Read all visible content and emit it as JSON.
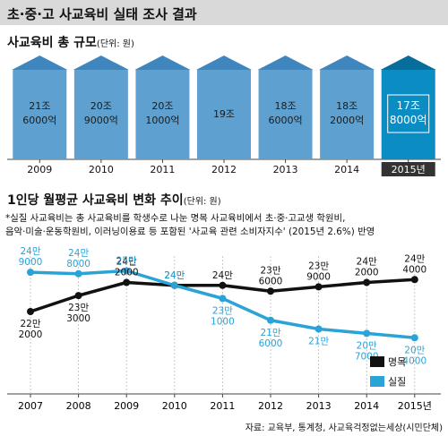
{
  "title": "초·중·고 사교육비 실태 조사 결과",
  "source": "자료: 교육부, 통계청, 사교육걱정없는세상(시민단체)",
  "chart_data": [
    {
      "type": "bar",
      "title": "사교육비 총 규모",
      "unit": "(단위: 원)",
      "categories": [
        "2009",
        "2010",
        "2011",
        "2012",
        "2013",
        "2014",
        "2015년"
      ],
      "values": [
        216000,
        209000,
        201000,
        190000,
        186000,
        182000,
        178000
      ],
      "value_unit": "억 원",
      "value_labels": [
        [
          "21조",
          "6000억"
        ],
        [
          "20조",
          "9000억"
        ],
        [
          "20조",
          "1000억"
        ],
        [
          "19조"
        ],
        [
          "18조",
          "6000억"
        ],
        [
          "18조",
          "2000억"
        ],
        [
          "17조",
          "8000억"
        ]
      ],
      "highlight_index": 6,
      "colors": {
        "bar": "#5ea1d1",
        "highlight": "#0b8dc4",
        "roof": "#3f86bf",
        "highlight_roof": "#076e9c"
      }
    },
    {
      "type": "line",
      "title": "1인당 월평균 사교육비 변화 추이",
      "unit": "(단위: 원)",
      "note": [
        "*실질 사교육비는 총 사교육비를 학생수로 나눈 명목 사교육비에서 초·중·고교생 학원비,",
        "음악·미술·운동학원비, 이러닝이용료 등 포함된 '사교육 관련 소비자지수' (2015년 2.6%) 반영"
      ],
      "x": [
        "2007",
        "2008",
        "2009",
        "2010",
        "2011",
        "2012",
        "2013",
        "2014",
        "2015년"
      ],
      "ylim": [
        190000,
        270000
      ],
      "legend_position": "bottom-right",
      "series": [
        {
          "name": "명목",
          "color": "#111111",
          "values": [
            222000,
            233000,
            242000,
            240000,
            240000,
            236000,
            239000,
            242000,
            244000
          ],
          "labels": [
            [
              "22만",
              "2000"
            ],
            [
              "23만",
              "3000"
            ],
            [
              "24만",
              "2000"
            ],
            [
              "24만"
            ],
            [
              "24만"
            ],
            [
              "23만",
              "6000"
            ],
            [
              "23만",
              "9000"
            ],
            [
              "24만",
              "2000"
            ],
            [
              "24만",
              "4000"
            ]
          ]
        },
        {
          "name": "실질",
          "color": "#2aa3d6",
          "values": [
            249000,
            248000,
            250000,
            240000,
            231000,
            216000,
            210000,
            207000,
            204000
          ],
          "labels": [
            [
              "24만",
              "9000"
            ],
            [
              "24만",
              "8000"
            ],
            [
              "25만"
            ],
            [
              "24만"
            ],
            [
              "23만",
              "1000"
            ],
            [
              "21만",
              "6000"
            ],
            [
              "21만"
            ],
            [
              "20만",
              "7000"
            ],
            [
              "20만",
              "4000"
            ]
          ]
        }
      ]
    }
  ]
}
